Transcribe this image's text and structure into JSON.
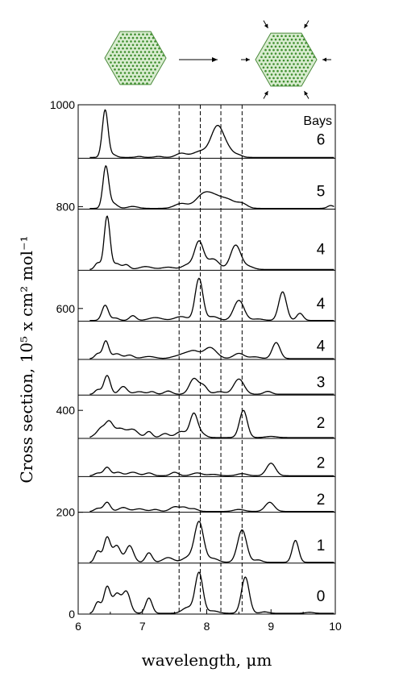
{
  "chart_data": {
    "type": "line",
    "xlabel": "wavelength, μm",
    "ylabel": "Cross section, 10⁵ x cm² mol⁻¹",
    "xlim": [
      6,
      10
    ],
    "ylim": [
      0,
      1000
    ],
    "x_ticks": [
      "6",
      "7",
      "8",
      "9",
      "10"
    ],
    "y_ticks": [
      "0",
      "200",
      "400",
      "600",
      "800",
      "1000"
    ],
    "column_header": "Bays",
    "dashed_reference_lines_um": [
      7.57,
      7.9,
      8.22,
      8.55
    ],
    "panels": [
      {
        "bays": "6",
        "y_base": 895,
        "y_top": 1000,
        "peaks": [
          [
            6.42,
            95,
            0.045
          ],
          [
            6.55,
            5,
            0.05
          ],
          [
            7.6,
            8,
            0.08
          ],
          [
            7.9,
            12,
            0.12
          ],
          [
            8.17,
            62,
            0.1
          ],
          [
            8.35,
            10,
            0.08
          ],
          [
            8.5,
            4,
            0.06
          ],
          [
            6.95,
            2,
            0.05
          ],
          [
            7.25,
            2,
            0.06
          ]
        ]
      },
      {
        "bays": "5",
        "y_base": 795,
        "y_top": 895,
        "peaks": [
          [
            6.43,
            88,
            0.045
          ],
          [
            6.55,
            10,
            0.06
          ],
          [
            6.85,
            4,
            0.08
          ],
          [
            7.6,
            10,
            0.1
          ],
          [
            7.95,
            28,
            0.12
          ],
          [
            8.15,
            20,
            0.12
          ],
          [
            8.35,
            14,
            0.1
          ],
          [
            8.55,
            10,
            0.08
          ],
          [
            9.93,
            6,
            0.05
          ]
        ]
      },
      {
        "bays": "4",
        "y_base": 675,
        "y_top": 795,
        "peaks": [
          [
            6.3,
            12,
            0.05
          ],
          [
            6.45,
            92,
            0.045
          ],
          [
            6.6,
            10,
            0.06
          ],
          [
            6.75,
            8,
            0.05
          ],
          [
            7.05,
            5,
            0.1
          ],
          [
            7.4,
            4,
            0.1
          ],
          [
            7.7,
            8,
            0.08
          ],
          [
            7.88,
            48,
            0.07
          ],
          [
            8.1,
            18,
            0.09
          ],
          [
            8.45,
            42,
            0.08
          ],
          [
            8.65,
            5,
            0.08
          ]
        ]
      },
      {
        "bays": "4",
        "y_base": 575,
        "y_top": 675,
        "peaks": [
          [
            6.42,
            32,
            0.05
          ],
          [
            6.58,
            5,
            0.05
          ],
          [
            6.85,
            10,
            0.05
          ],
          [
            7.2,
            6,
            0.1
          ],
          [
            7.6,
            8,
            0.1
          ],
          [
            7.88,
            88,
            0.06
          ],
          [
            8.1,
            8,
            0.08
          ],
          [
            8.5,
            42,
            0.08
          ],
          [
            8.8,
            3,
            0.08
          ],
          [
            9.18,
            60,
            0.06
          ],
          [
            9.45,
            15,
            0.05
          ]
        ]
      },
      {
        "bays": "4",
        "y_base": 500,
        "y_top": 575,
        "peaks": [
          [
            6.3,
            15,
            0.05
          ],
          [
            6.43,
            50,
            0.045
          ],
          [
            6.6,
            14,
            0.07
          ],
          [
            6.8,
            10,
            0.06
          ],
          [
            7.1,
            6,
            0.1
          ],
          [
            7.5,
            5,
            0.08
          ],
          [
            7.65,
            12,
            0.08
          ],
          [
            7.8,
            20,
            0.08
          ],
          [
            8.05,
            32,
            0.1
          ],
          [
            8.5,
            15,
            0.08
          ],
          [
            8.75,
            5,
            0.08
          ],
          [
            9.08,
            46,
            0.06
          ]
        ]
      },
      {
        "bays": "3",
        "y_base": 430,
        "y_top": 500,
        "peaks": [
          [
            6.3,
            15,
            0.05
          ],
          [
            6.45,
            58,
            0.05
          ],
          [
            6.7,
            24,
            0.06
          ],
          [
            6.95,
            8,
            0.08
          ],
          [
            7.15,
            8,
            0.05
          ],
          [
            7.4,
            10,
            0.06
          ],
          [
            7.8,
            48,
            0.07
          ],
          [
            7.95,
            25,
            0.06
          ],
          [
            8.2,
            8,
            0.08
          ],
          [
            8.5,
            47,
            0.08
          ],
          [
            8.95,
            9,
            0.06
          ]
        ]
      },
      {
        "bays": "2",
        "y_base": 345,
        "y_top": 430,
        "peaks": [
          [
            6.22,
            6,
            0.05
          ],
          [
            6.35,
            22,
            0.06
          ],
          [
            6.48,
            38,
            0.06
          ],
          [
            6.65,
            22,
            0.08
          ],
          [
            6.85,
            20,
            0.08
          ],
          [
            7.1,
            15,
            0.05
          ],
          [
            7.35,
            10,
            0.06
          ],
          [
            7.6,
            15,
            0.08
          ],
          [
            7.8,
            60,
            0.06
          ],
          [
            7.93,
            8,
            0.06
          ],
          [
            8.57,
            68,
            0.06
          ],
          [
            9.0,
            3,
            0.08
          ]
        ]
      },
      {
        "bays": "2",
        "y_base": 270,
        "y_top": 345,
        "peaks": [
          [
            6.3,
            8,
            0.06
          ],
          [
            6.45,
            24,
            0.05
          ],
          [
            6.62,
            10,
            0.06
          ],
          [
            6.85,
            10,
            0.08
          ],
          [
            7.1,
            8,
            0.06
          ],
          [
            7.5,
            10,
            0.06
          ],
          [
            7.85,
            8,
            0.08
          ],
          [
            8.1,
            4,
            0.08
          ],
          [
            8.55,
            6,
            0.08
          ],
          [
            9.0,
            36,
            0.07
          ]
        ]
      },
      {
        "bays": "2",
        "y_base": 200,
        "y_top": 270,
        "peaks": [
          [
            6.3,
            10,
            0.06
          ],
          [
            6.45,
            28,
            0.05
          ],
          [
            6.7,
            12,
            0.07
          ],
          [
            6.95,
            8,
            0.08
          ],
          [
            7.2,
            6,
            0.06
          ],
          [
            7.5,
            14,
            0.07
          ],
          [
            7.65,
            12,
            0.06
          ],
          [
            7.8,
            8,
            0.06
          ],
          [
            8.5,
            6,
            0.08
          ],
          [
            8.98,
            28,
            0.07
          ]
        ]
      },
      {
        "bays": "1",
        "y_base": 100,
        "y_top": 200,
        "peaks": [
          [
            6.3,
            25,
            0.05
          ],
          [
            6.45,
            52,
            0.05
          ],
          [
            6.6,
            35,
            0.06
          ],
          [
            6.8,
            35,
            0.06
          ],
          [
            7.1,
            20,
            0.05
          ],
          [
            7.4,
            10,
            0.08
          ],
          [
            7.7,
            10,
            0.08
          ],
          [
            7.88,
            85,
            0.07
          ],
          [
            8.1,
            8,
            0.08
          ],
          [
            8.55,
            68,
            0.07
          ],
          [
            8.8,
            5,
            0.06
          ],
          [
            9.38,
            46,
            0.05
          ]
        ]
      },
      {
        "bays": "0",
        "y_base": 0,
        "y_top": 100,
        "peaks": [
          [
            6.3,
            25,
            0.05
          ],
          [
            6.45,
            55,
            0.05
          ],
          [
            6.6,
            40,
            0.06
          ],
          [
            6.75,
            45,
            0.06
          ],
          [
            7.1,
            32,
            0.05
          ],
          [
            7.7,
            12,
            0.08
          ],
          [
            7.88,
            85,
            0.06
          ],
          [
            8.1,
            5,
            0.08
          ],
          [
            8.6,
            76,
            0.06
          ],
          [
            8.9,
            3,
            0.06
          ],
          [
            9.6,
            2,
            0.06
          ]
        ]
      }
    ]
  }
}
